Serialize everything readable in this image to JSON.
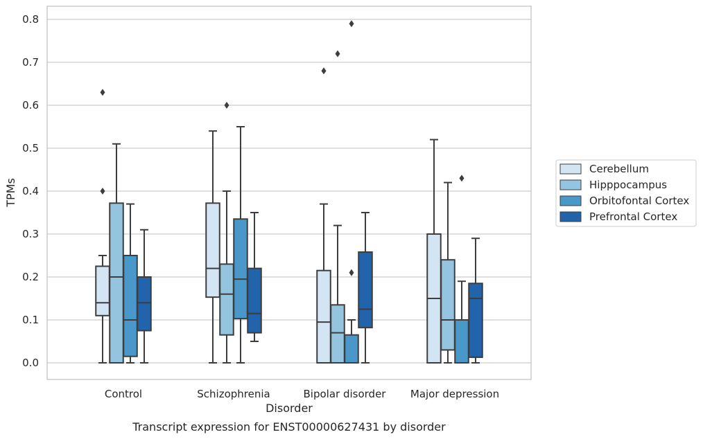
{
  "caption": "Transcript expression for ENST00000627431 by disorder",
  "chart_data": {
    "type": "box",
    "xlabel": "Disorder",
    "ylabel": "TPMs",
    "ylim": [
      -0.04,
      0.83
    ],
    "yticks": [
      "0.0",
      "0.1",
      "0.2",
      "0.3",
      "0.4",
      "0.5",
      "0.6",
      "0.7",
      "0.8"
    ],
    "ytick_values": [
      0.0,
      0.1,
      0.2,
      0.3,
      0.4,
      0.5,
      0.6,
      0.7,
      0.8
    ],
    "grid": "horizontal",
    "legend_position": "right",
    "categories": [
      "Control",
      "Schizophrenia",
      "Bipolar disorder",
      "Major depression"
    ],
    "series": [
      {
        "name": "Cerebellum",
        "color": "#d3e4f3",
        "boxes": [
          {
            "whisker_low": 0.0,
            "q1": 0.11,
            "median": 0.14,
            "q3": 0.225,
            "whisker_high": 0.25,
            "outliers": [
              0.4,
              0.63
            ]
          },
          {
            "whisker_low": 0.0,
            "q1": 0.153,
            "median": 0.22,
            "q3": 0.372,
            "whisker_high": 0.54,
            "outliers": []
          },
          {
            "whisker_low": 0.0,
            "q1": 0.0,
            "median": 0.095,
            "q3": 0.215,
            "whisker_high": 0.37,
            "outliers": [
              0.68
            ]
          },
          {
            "whisker_low": 0.0,
            "q1": 0.0,
            "median": 0.15,
            "q3": 0.3,
            "whisker_high": 0.52,
            "outliers": []
          }
        ]
      },
      {
        "name": "Hipppocampus",
        "color": "#94c4df",
        "boxes": [
          {
            "whisker_low": 0.0,
            "q1": 0.0,
            "median": 0.2,
            "q3": 0.372,
            "whisker_high": 0.51,
            "outliers": []
          },
          {
            "whisker_low": 0.0,
            "q1": 0.065,
            "median": 0.16,
            "q3": 0.23,
            "whisker_high": 0.4,
            "outliers": [
              0.6
            ]
          },
          {
            "whisker_low": 0.0,
            "q1": 0.0,
            "median": 0.07,
            "q3": 0.135,
            "whisker_high": 0.32,
            "outliers": [
              0.72
            ]
          },
          {
            "whisker_low": 0.0,
            "q1": 0.03,
            "median": 0.1,
            "q3": 0.24,
            "whisker_high": 0.42,
            "outliers": []
          }
        ]
      },
      {
        "name": "Orbitofontal Cortex",
        "color": "#4a98c9",
        "boxes": [
          {
            "whisker_low": 0.0,
            "q1": 0.015,
            "median": 0.1,
            "q3": 0.25,
            "whisker_high": 0.37,
            "outliers": []
          },
          {
            "whisker_low": 0.0,
            "q1": 0.103,
            "median": 0.195,
            "q3": 0.335,
            "whisker_high": 0.55,
            "outliers": []
          },
          {
            "whisker_low": 0.0,
            "q1": 0.0,
            "median": 0.0,
            "q3": 0.065,
            "whisker_high": 0.1,
            "outliers": [
              0.21,
              0.79
            ]
          },
          {
            "whisker_low": 0.0,
            "q1": 0.0,
            "median": 0.1,
            "q3": 0.1,
            "whisker_high": 0.19,
            "outliers": [
              0.43
            ]
          }
        ]
      },
      {
        "name": "Prefrontal Cortex",
        "color": "#2164ab",
        "boxes": [
          {
            "whisker_low": 0.0,
            "q1": 0.075,
            "median": 0.14,
            "q3": 0.2,
            "whisker_high": 0.31,
            "outliers": []
          },
          {
            "whisker_low": 0.05,
            "q1": 0.07,
            "median": 0.115,
            "q3": 0.22,
            "whisker_high": 0.35,
            "outliers": []
          },
          {
            "whisker_low": 0.0,
            "q1": 0.082,
            "median": 0.125,
            "q3": 0.258,
            "whisker_high": 0.35,
            "outliers": []
          },
          {
            "whisker_low": 0.0,
            "q1": 0.013,
            "median": 0.15,
            "q3": 0.185,
            "whisker_high": 0.29,
            "outliers": []
          }
        ]
      }
    ]
  }
}
